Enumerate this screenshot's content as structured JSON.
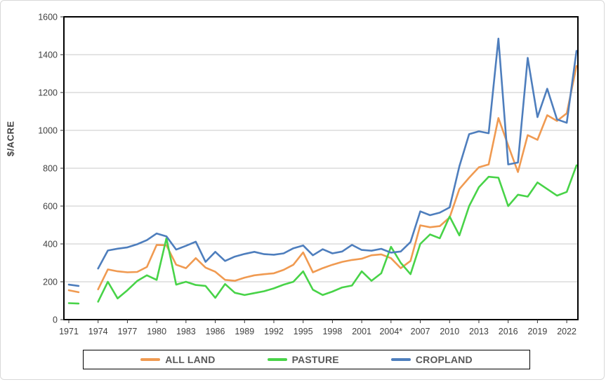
{
  "axis": {
    "y_title": "$/ACRE"
  },
  "chart_data": {
    "type": "line",
    "ylabel": "$/ACRE",
    "ylim": [
      0,
      1600
    ],
    "ytick_step": 200,
    "ytick_labels": [
      "0",
      "200",
      "400",
      "600",
      "800",
      "1000",
      "1200",
      "1400",
      "1600"
    ],
    "xticks": [
      1971,
      1974,
      1977,
      1980,
      1983,
      1986,
      1989,
      1992,
      1995,
      1998,
      2001,
      2004,
      2007,
      2010,
      2013,
      2016,
      2019,
      2022
    ],
    "xtick_labels": [
      "1971",
      "1974",
      "1977",
      "1980",
      "1983",
      "1986",
      "1989",
      "1992",
      "1995",
      "1998",
      "2001",
      "2004*",
      "2007",
      "2010",
      "2013",
      "2016",
      "2019",
      "2022"
    ],
    "grid": "horizontal-only",
    "gridline_color": "#c9c9c9",
    "axis_border_color": "#000000",
    "tick_label_color": "#404040",
    "legend_position": "bottom",
    "years": [
      1971,
      1972,
      1973,
      1974,
      1975,
      1976,
      1977,
      1978,
      1979,
      1980,
      1981,
      1982,
      1983,
      1984,
      1985,
      1986,
      1987,
      1988,
      1989,
      1990,
      1991,
      1992,
      1993,
      1994,
      1995,
      1996,
      1997,
      1998,
      1999,
      2000,
      2001,
      2002,
      2003,
      2004,
      2005,
      2006,
      2007,
      2008,
      2009,
      2010,
      2011,
      2012,
      2013,
      2014,
      2015,
      2016,
      2017,
      2018,
      2019,
      2020,
      2021,
      2022,
      2023
    ],
    "note": "values in $/acre; 1973 missing (gap in all series); 2004 marked with asterisk on axis",
    "series": [
      {
        "name": "ALL LAND",
        "color": "#F09A51",
        "values": [
          155,
          145,
          null,
          160,
          265,
          255,
          250,
          252,
          278,
          395,
          393,
          290,
          272,
          325,
          275,
          253,
          210,
          205,
          222,
          234,
          240,
          245,
          263,
          290,
          355,
          250,
          272,
          290,
          305,
          315,
          322,
          340,
          345,
          325,
          272,
          310,
          498,
          488,
          494,
          540,
          690,
          750,
          805,
          820,
          1065,
          920,
          780,
          975,
          950,
          1080,
          1050,
          1090,
          1340
        ]
      },
      {
        "name": "PASTURE",
        "color": "#48D348",
        "values": [
          87,
          85,
          null,
          95,
          200,
          112,
          155,
          204,
          234,
          210,
          430,
          185,
          200,
          183,
          178,
          115,
          188,
          142,
          130,
          140,
          150,
          165,
          185,
          200,
          255,
          158,
          130,
          148,
          170,
          180,
          255,
          205,
          245,
          385,
          300,
          240,
          400,
          450,
          430,
          545,
          445,
          600,
          700,
          755,
          750,
          600,
          660,
          650,
          725,
          690,
          655,
          675,
          815
        ]
      },
      {
        "name": "CROPLAND",
        "color": "#4E7EBD",
        "values": [
          185,
          178,
          null,
          270,
          365,
          375,
          382,
          398,
          420,
          455,
          440,
          370,
          390,
          412,
          305,
          358,
          310,
          333,
          347,
          358,
          346,
          343,
          350,
          377,
          392,
          340,
          372,
          350,
          360,
          395,
          368,
          364,
          374,
          354,
          360,
          410,
          572,
          552,
          565,
          593,
          810,
          980,
          995,
          985,
          1485,
          820,
          830,
          1383,
          1070,
          1220,
          1058,
          1040,
          1420
        ]
      }
    ]
  }
}
